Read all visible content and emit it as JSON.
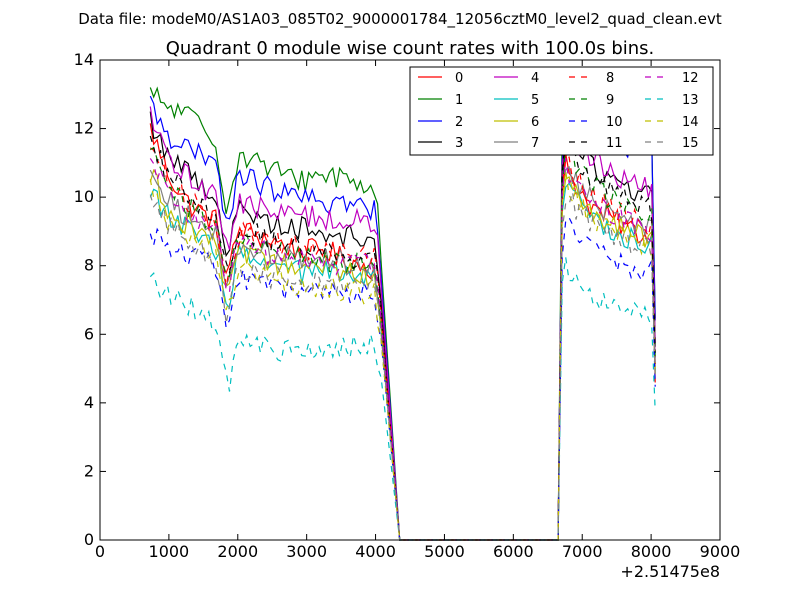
{
  "chart_data": {
    "type": "line",
    "suptitle": "Data file: modeM0/AS1A03_085T02_9000001784_12056cztM0_level2_quad_clean.evt",
    "title": "Quadrant 0 module wise count rates with 100.0s bins.",
    "xlabel": "",
    "ylabel": "",
    "x_offset_label": "+2.51475e8",
    "xlim": [
      0,
      9000
    ],
    "ylim": [
      0,
      14
    ],
    "xticks": [
      0,
      1000,
      2000,
      3000,
      4000,
      5000,
      6000,
      7000,
      8000,
      9000
    ],
    "yticks": [
      0,
      2,
      4,
      6,
      8,
      10,
      12,
      14
    ],
    "xtick_labels": [
      "0",
      "1000",
      "2000",
      "3000",
      "4000",
      "5000",
      "6000",
      "7000",
      "8000",
      "9000"
    ],
    "ytick_labels": [
      "0",
      "2",
      "4",
      "6",
      "8",
      "10",
      "12",
      "14"
    ],
    "legend": {
      "position": "top-right",
      "columns": 4
    },
    "x": {
      "start1": 730,
      "step": 50,
      "count1": 68,
      "gap": [
        4350,
        6650
      ],
      "start2": 6710,
      "count2": 28
    },
    "series": [
      {
        "name": "0",
        "color": "#ff0000",
        "dash": "solid",
        "seg1": [
          12.0,
          10.6,
          9.8,
          9.4,
          9.2,
          9.0,
          8.8,
          8.6,
          8.4,
          8.5,
          8.2,
          8.0,
          7.9
        ],
        "seg2": [
          11.2,
          10.4,
          9.8,
          9.5,
          9.3,
          9.1,
          8.9,
          8.7
        ]
      },
      {
        "name": "1",
        "color": "#008000",
        "dash": "solid",
        "seg1": [
          13.0,
          12.6,
          12.4,
          11.8,
          11.2,
          11.2,
          10.9,
          10.6,
          10.5,
          10.7,
          10.6,
          10.4,
          10.2
        ],
        "seg2": [
          13.3,
          12.9,
          12.5,
          12.2,
          12.0,
          11.8,
          11.6,
          11.4
        ]
      },
      {
        "name": "2",
        "color": "#0000ff",
        "dash": "solid",
        "seg1": [
          12.7,
          11.8,
          11.4,
          11.0,
          10.7,
          10.6,
          10.3,
          10.1,
          9.9,
          9.9,
          9.8,
          9.7,
          9.6
        ],
        "seg2": [
          12.6,
          12.2,
          11.9,
          11.7,
          11.6,
          11.5,
          11.4,
          11.3
        ]
      },
      {
        "name": "3",
        "color": "#000000",
        "dash": "solid",
        "seg1": [
          12.2,
          11.2,
          10.7,
          10.2,
          9.9,
          9.6,
          9.3,
          9.2,
          9.1,
          9.0,
          8.9,
          8.8,
          8.7
        ],
        "seg2": [
          12.0,
          11.4,
          11.0,
          10.7,
          10.5,
          10.3,
          10.1,
          9.9
        ]
      },
      {
        "name": "4",
        "color": "#bf00bf",
        "dash": "solid",
        "seg1": [
          12.3,
          11.0,
          10.6,
          10.2,
          10.0,
          9.8,
          9.6,
          9.5,
          9.5,
          9.4,
          9.3,
          9.3,
          9.2
        ],
        "seg2": [
          12.2,
          11.6,
          11.2,
          10.9,
          10.7,
          10.5,
          10.3,
          10.1
        ]
      },
      {
        "name": "5",
        "color": "#00bfbf",
        "dash": "solid",
        "seg1": [
          10.3,
          9.4,
          9.0,
          8.6,
          8.4,
          8.2,
          8.0,
          7.9,
          7.8,
          7.8,
          7.7,
          7.6,
          7.6
        ],
        "seg2": [
          10.6,
          10.0,
          9.5,
          9.2,
          9.0,
          8.8,
          8.7,
          8.6
        ]
      },
      {
        "name": "6",
        "color": "#bfbf00",
        "dash": "solid",
        "seg1": [
          10.7,
          9.6,
          9.2,
          8.8,
          8.5,
          8.3,
          8.1,
          8.0,
          7.9,
          7.9,
          7.8,
          7.8,
          7.7
        ],
        "seg2": [
          10.8,
          10.1,
          9.7,
          9.4,
          9.2,
          9.0,
          8.8,
          8.7
        ]
      },
      {
        "name": "7",
        "color": "#808080",
        "dash": "solid",
        "seg1": [
          11.0,
          9.9,
          9.4,
          9.0,
          8.8,
          8.6,
          8.4,
          8.3,
          8.2,
          8.2,
          8.1,
          8.0,
          8.0
        ],
        "seg2": [
          11.0,
          10.4,
          10.0,
          9.7,
          9.5,
          9.3,
          9.1,
          9.0
        ]
      },
      {
        "name": "8",
        "color": "#ff0000",
        "dash": "dashed",
        "seg1": [
          11.6,
          10.4,
          9.9,
          9.4,
          9.1,
          8.9,
          8.7,
          8.6,
          8.5,
          8.4,
          8.3,
          8.3,
          8.2
        ],
        "seg2": [
          11.3,
          10.6,
          10.1,
          9.8,
          9.6,
          9.4,
          9.2,
          9.0
        ]
      },
      {
        "name": "9",
        "color": "#008000",
        "dash": "dashed",
        "seg1": [
          11.5,
          10.2,
          9.7,
          9.3,
          9.0,
          8.7,
          8.5,
          8.4,
          8.3,
          8.2,
          8.1,
          8.0,
          7.9
        ],
        "seg2": [
          11.6,
          10.9,
          10.4,
          10.1,
          9.9,
          9.7,
          9.5,
          9.3
        ]
      },
      {
        "name": "10",
        "color": "#0000ff",
        "dash": "dashed",
        "seg1": [
          9.0,
          8.6,
          8.3,
          8.1,
          7.8,
          7.6,
          7.4,
          7.3,
          7.2,
          7.2,
          7.2,
          7.2,
          7.2
        ],
        "seg2": [
          9.3,
          8.9,
          8.6,
          8.3,
          8.1,
          8.0,
          7.9,
          7.8
        ]
      },
      {
        "name": "11",
        "color": "#000000",
        "dash": "dashed",
        "seg1": [
          11.8,
          10.6,
          10.1,
          9.6,
          9.3,
          9.0,
          8.8,
          8.6,
          8.5,
          8.4,
          8.3,
          8.2,
          8.1
        ],
        "seg2": [
          11.9,
          11.2,
          10.7,
          10.4,
          10.2,
          10.0,
          9.8,
          9.6
        ]
      },
      {
        "name": "12",
        "color": "#bf00bf",
        "dash": "dashed",
        "seg1": [
          11.1,
          10.0,
          9.5,
          9.1,
          8.8,
          8.6,
          8.4,
          8.3,
          8.2,
          8.1,
          8.1,
          8.0,
          8.0
        ],
        "seg2": [
          11.1,
          10.4,
          10.0,
          9.7,
          9.5,
          9.3,
          9.1,
          9.0
        ]
      },
      {
        "name": "13",
        "color": "#00bfbf",
        "dash": "dashed",
        "seg1": [
          7.6,
          7.1,
          6.8,
          6.4,
          6.0,
          5.8,
          5.6,
          5.5,
          5.5,
          5.5,
          5.6,
          5.7,
          5.8
        ],
        "seg2": [
          8.1,
          7.6,
          7.3,
          7.0,
          6.8,
          6.7,
          6.6,
          6.5
        ]
      },
      {
        "name": "14",
        "color": "#bfbf00",
        "dash": "dashed",
        "seg1": [
          10.4,
          9.3,
          8.8,
          8.4,
          8.1,
          7.8,
          7.6,
          7.5,
          7.4,
          7.3,
          7.3,
          7.2,
          7.2
        ],
        "seg2": [
          10.6,
          10.0,
          9.5,
          9.2,
          9.0,
          8.8,
          8.6,
          8.5
        ]
      },
      {
        "name": "15",
        "color": "#808080",
        "dash": "dashed",
        "seg1": [
          9.9,
          9.1,
          8.7,
          8.3,
          8.0,
          7.8,
          7.7,
          7.6,
          7.5,
          7.5,
          7.4,
          7.4,
          7.4
        ],
        "seg2": [
          10.3,
          9.7,
          9.3,
          9.0,
          8.8,
          8.6,
          8.5,
          8.4
        ]
      }
    ]
  }
}
